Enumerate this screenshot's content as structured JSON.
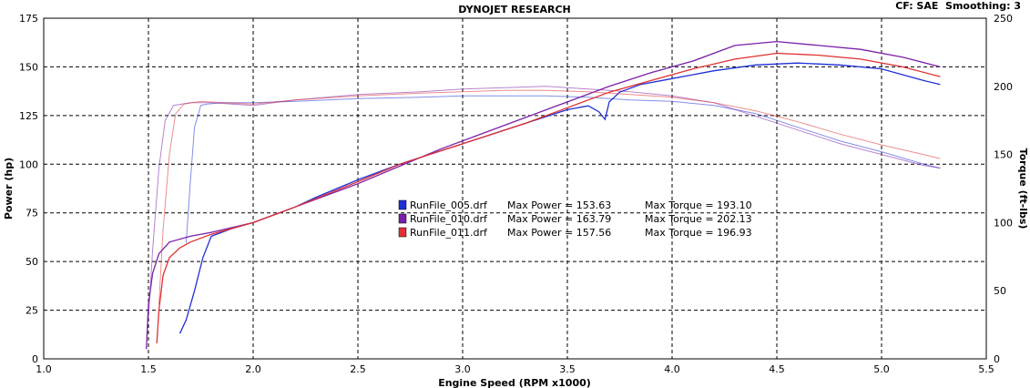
{
  "chart_data": {
    "type": "line",
    "title": "DYNOJET RESEARCH",
    "header_right": "CF: SAE  Smoothing: 3",
    "xlabel": "Engine Speed (RPM x1000)",
    "ylabel_left": "Power (hp)",
    "ylabel_right": "Torque (ft-lbs)",
    "xlim": [
      1.0,
      5.5
    ],
    "ylim_left": [
      0,
      175
    ],
    "ylim_right": [
      0,
      250
    ],
    "x_ticks": [
      "1.0",
      "1.5",
      "2.0",
      "2.5",
      "3.0",
      "3.5",
      "4.0",
      "4.5",
      "5.0",
      "5.5"
    ],
    "y_ticks_left": [
      "0",
      "25",
      "50",
      "75",
      "100",
      "125",
      "150",
      "175"
    ],
    "y_ticks_right": [
      "0",
      "50",
      "100",
      "150",
      "200",
      "250"
    ],
    "grid": true,
    "legend": [
      {
        "file": "RunFile_005.drf",
        "power_label": "Max Power = 153.63",
        "torque_label": "Max Torque = 193.10",
        "color": "#1f2fd6"
      },
      {
        "file": "RunFile_010.drf",
        "power_label": "Max Power = 163.79",
        "torque_label": "Max Torque = 202.13",
        "color": "#7a1fa8"
      },
      {
        "file": "RunFile_011.drf",
        "power_label": "Max Power = 157.56",
        "torque_label": "Max Torque = 196.93",
        "color": "#e03030"
      }
    ],
    "series": [
      {
        "name": "RunFile_005.drf",
        "color": "#1f2fd6",
        "power_hp": {
          "x": [
            1.65,
            1.68,
            1.72,
            1.76,
            1.8,
            1.9,
            2.0,
            2.1,
            2.2,
            2.3,
            2.5,
            2.7,
            2.9,
            3.1,
            3.3,
            3.5,
            3.6,
            3.65,
            3.68,
            3.7,
            3.75,
            3.85,
            4.0,
            4.2,
            4.4,
            4.6,
            4.8,
            5.0,
            5.2,
            5.28
          ],
          "y": [
            13,
            20,
            35,
            52,
            63,
            67,
            70,
            74,
            78,
            83,
            92,
            100,
            107,
            114,
            121,
            128,
            130,
            127,
            123,
            132,
            137,
            141,
            144,
            148,
            151,
            152,
            151,
            149,
            143,
            141
          ]
        },
        "torque_ftlbs": {
          "x": [
            1.68,
            1.7,
            1.72,
            1.75,
            1.78,
            1.85,
            2.0,
            2.2,
            2.5,
            2.8,
            3.0,
            3.2,
            3.4,
            3.6,
            3.8,
            4.0,
            4.2,
            4.4,
            4.6,
            4.8,
            5.0,
            5.2,
            5.28
          ],
          "y": [
            85,
            130,
            170,
            186,
            187,
            188,
            188,
            189,
            191,
            192,
            193,
            193,
            193,
            192,
            190,
            189,
            186,
            180,
            170,
            160,
            152,
            143,
            140
          ]
        }
      },
      {
        "name": "RunFile_010.drf",
        "color": "#7a1fa8",
        "power_hp": {
          "x": [
            1.49,
            1.5,
            1.52,
            1.55,
            1.6,
            1.7,
            1.8,
            2.0,
            2.2,
            2.5,
            2.7,
            2.9,
            3.1,
            3.3,
            3.5,
            3.7,
            3.9,
            4.1,
            4.3,
            4.5,
            4.7,
            4.9,
            5.1,
            5.28
          ],
          "y": [
            5,
            28,
            44,
            54,
            60,
            63,
            65,
            70,
            78,
            90,
            99,
            108,
            116,
            124,
            132,
            140,
            147,
            153,
            161,
            163,
            161,
            159,
            155,
            150
          ]
        },
        "torque_ftlbs": {
          "x": [
            1.5,
            1.52,
            1.55,
            1.58,
            1.62,
            1.7,
            1.8,
            2.0,
            2.2,
            2.5,
            2.8,
            3.0,
            3.2,
            3.4,
            3.6,
            3.8,
            4.0,
            4.2,
            4.4,
            4.6,
            4.8,
            5.0,
            5.2,
            5.28
          ],
          "y": [
            30,
            80,
            140,
            175,
            186,
            188,
            188,
            186,
            190,
            194,
            196,
            198,
            199,
            200,
            198,
            196,
            193,
            188,
            178,
            168,
            158,
            150,
            142,
            140
          ]
        }
      },
      {
        "name": "RunFile_011.drf",
        "color": "#e03030",
        "power_hp": {
          "x": [
            1.54,
            1.55,
            1.57,
            1.6,
            1.65,
            1.7,
            1.8,
            2.0,
            2.2,
            2.5,
            2.7,
            2.9,
            3.1,
            3.3,
            3.5,
            3.7,
            3.9,
            4.1,
            4.3,
            4.5,
            4.7,
            4.9,
            5.1,
            5.28
          ],
          "y": [
            8,
            25,
            43,
            52,
            57,
            60,
            64,
            70,
            78,
            91,
            100,
            107,
            114,
            121,
            129,
            137,
            143,
            149,
            154,
            157,
            156,
            154,
            150,
            145
          ]
        },
        "torque_ftlbs": {
          "x": [
            1.55,
            1.57,
            1.6,
            1.63,
            1.67,
            1.75,
            1.85,
            2.0,
            2.2,
            2.5,
            2.8,
            3.0,
            3.2,
            3.4,
            3.6,
            3.8,
            4.0,
            4.2,
            4.4,
            4.6,
            4.8,
            5.0,
            5.2,
            5.28
          ],
          "y": [
            40,
            95,
            150,
            180,
            187,
            189,
            188,
            187,
            190,
            193,
            195,
            196,
            197,
            197,
            196,
            194,
            192,
            188,
            182,
            174,
            165,
            157,
            150,
            147
          ]
        }
      }
    ]
  }
}
